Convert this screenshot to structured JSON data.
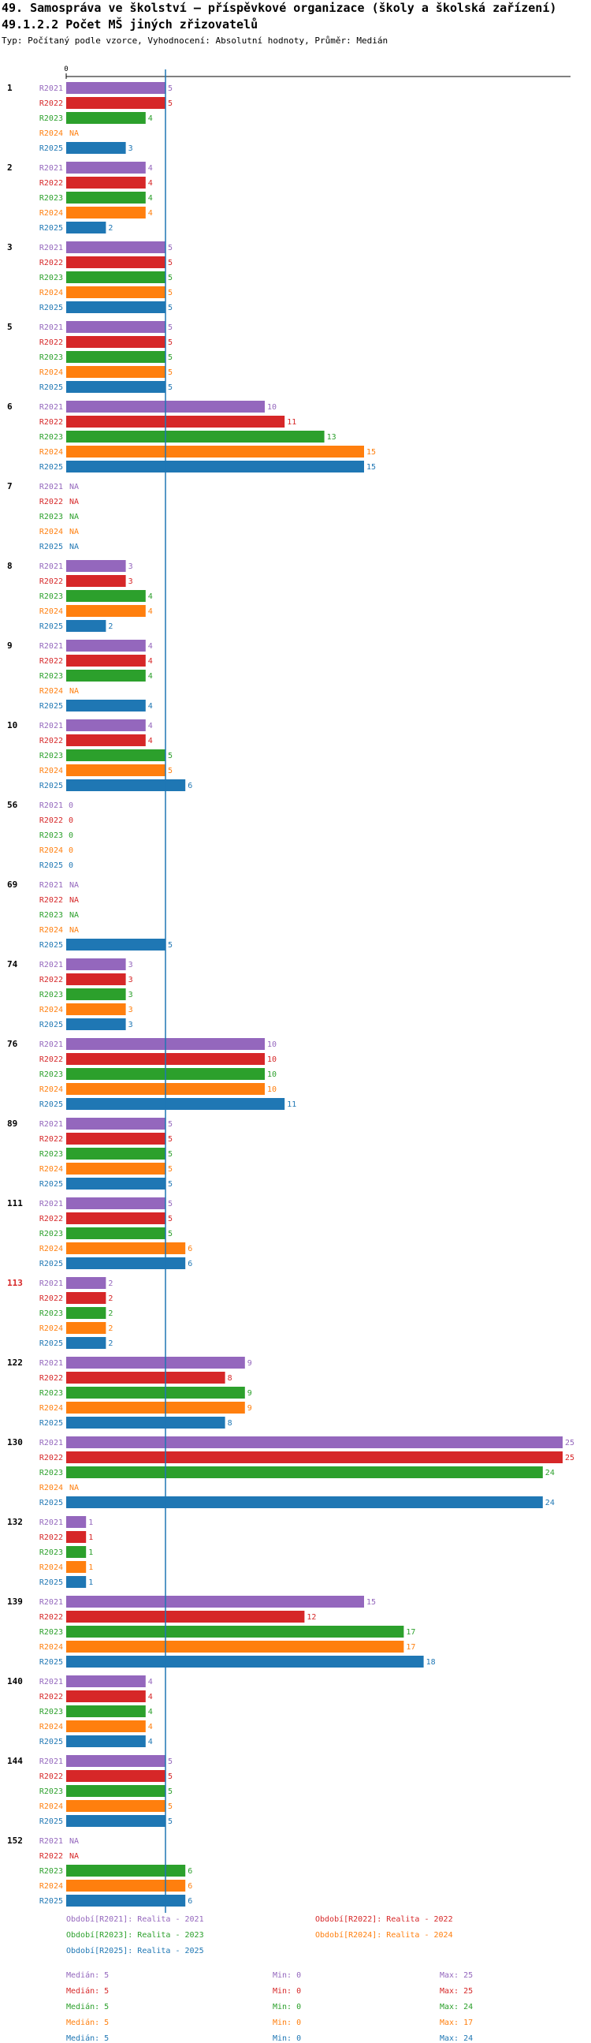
{
  "header": {
    "title": "49. Samospráva ve školství – příspěvkové organizace (školy a školská zařízení)",
    "subtitle": "49.1.2.2 Počet MŠ jiných zřizovatelů",
    "description": "Typ: Počítaný podle vzorce, Vyhodnocení: Absolutní hodnoty, Průměr: Medián"
  },
  "colors": {
    "R2021": "#9467bd",
    "R2022": "#d62728",
    "R2023": "#2ca02c",
    "R2024": "#ff7f0e",
    "R2025": "#1f77b4",
    "median_line": "#1f77b4",
    "highlight_category": "#d62728"
  },
  "chart_data": {
    "type": "bar",
    "orientation": "horizontal",
    "x_axis_tick": "0",
    "xlim": [
      0,
      25
    ],
    "median": 5,
    "na_label": "NA",
    "series_names": [
      "R2021",
      "R2022",
      "R2023",
      "R2024",
      "R2025"
    ],
    "categories": [
      "1",
      "2",
      "3",
      "5",
      "6",
      "7",
      "8",
      "9",
      "10",
      "56",
      "69",
      "74",
      "76",
      "89",
      "111",
      "113",
      "122",
      "130",
      "132",
      "139",
      "140",
      "144",
      "152"
    ],
    "highlighted_category": "113",
    "values": {
      "1": [
        5,
        5,
        4,
        null,
        3
      ],
      "2": [
        4,
        4,
        4,
        4,
        2
      ],
      "3": [
        5,
        5,
        5,
        5,
        5
      ],
      "5": [
        5,
        5,
        5,
        5,
        5
      ],
      "6": [
        10,
        11,
        13,
        15,
        15
      ],
      "7": [
        null,
        null,
        null,
        null,
        null
      ],
      "8": [
        3,
        3,
        4,
        4,
        2
      ],
      "9": [
        4,
        4,
        4,
        null,
        4
      ],
      "10": [
        4,
        4,
        5,
        5,
        6
      ],
      "56": [
        0,
        0,
        0,
        0,
        0
      ],
      "69": [
        null,
        null,
        null,
        null,
        5
      ],
      "74": [
        3,
        3,
        3,
        3,
        3
      ],
      "76": [
        10,
        10,
        10,
        10,
        11
      ],
      "89": [
        5,
        5,
        5,
        5,
        5
      ],
      "111": [
        5,
        5,
        5,
        6,
        6
      ],
      "113": [
        2,
        2,
        2,
        2,
        2
      ],
      "122": [
        9,
        8,
        9,
        9,
        8
      ],
      "130": [
        25,
        25,
        24,
        null,
        24
      ],
      "132": [
        1,
        1,
        1,
        1,
        1
      ],
      "139": [
        15,
        12,
        17,
        17,
        18
      ],
      "140": [
        4,
        4,
        4,
        4,
        4
      ],
      "144": [
        5,
        5,
        5,
        5,
        5
      ],
      "152": [
        null,
        null,
        6,
        6,
        6
      ]
    }
  },
  "legend": {
    "periods": [
      "Období[R2021]: Realita - 2021",
      "Období[R2022]: Realita - 2022",
      "Období[R2023]: Realita - 2023",
      "Období[R2024]: Realita - 2024",
      "Období[R2025]: Realita - 2025"
    ],
    "stats": [
      {
        "median": "Medián: 5",
        "min": "Min: 0",
        "max": "Max: 25"
      },
      {
        "median": "Medián: 5",
        "min": "Min: 0",
        "max": "Max: 25"
      },
      {
        "median": "Medián: 5",
        "min": "Min: 0",
        "max": "Max: 24"
      },
      {
        "median": "Medián: 5",
        "min": "Min: 0",
        "max": "Max: 17"
      },
      {
        "median": "Medián: 5",
        "min": "Min: 0",
        "max": "Max: 24"
      }
    ]
  }
}
